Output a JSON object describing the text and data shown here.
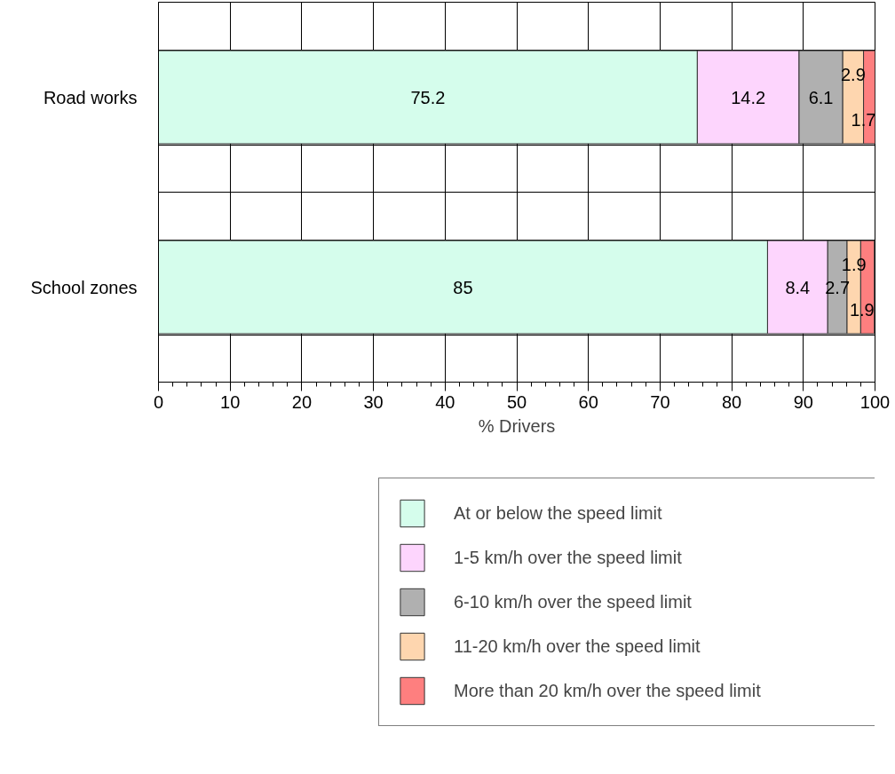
{
  "chart_data": {
    "type": "bar",
    "orientation": "horizontal",
    "stacked": true,
    "xlabel": "% Drivers",
    "categories": [
      "Road works",
      "School zones"
    ],
    "series": [
      {
        "name": "At or below the speed limit",
        "color": "#d5fdec",
        "values": [
          75.2,
          85
        ]
      },
      {
        "name": "1-5 km/h over the speed limit",
        "color": "#fdd5fd",
        "values": [
          14.2,
          8.4
        ]
      },
      {
        "name": "6-10 km/h over the speed limit",
        "color": "#b0b0b0",
        "values": [
          6.1,
          2.7
        ]
      },
      {
        "name": "11-20 km/h over the speed limit",
        "color": "#fed6af",
        "values": [
          2.9,
          1.9
        ]
      },
      {
        "name": "More than 20 km/h over the speed limit",
        "color": "#fe7f7f",
        "values": [
          1.7,
          1.9
        ]
      }
    ],
    "xlim": [
      0,
      100
    ],
    "xticks": [
      0,
      10,
      20,
      30,
      40,
      50,
      60,
      70,
      80,
      90,
      100
    ],
    "data_labels": true,
    "grid": true,
    "legend": "bottom"
  }
}
